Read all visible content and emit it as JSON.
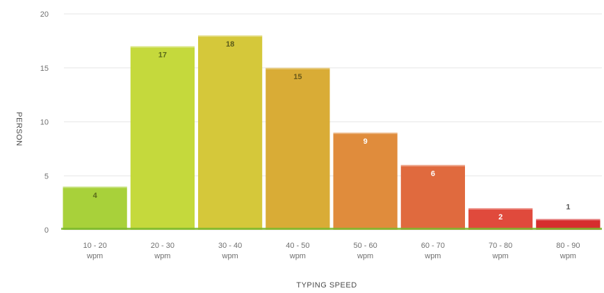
{
  "chart_data": {
    "type": "bar",
    "title": "",
    "xlabel": "TYPING SPEED",
    "ylabel": "PERSON",
    "ylim": [
      0,
      20
    ],
    "yticks": [
      0,
      5,
      10,
      15,
      20
    ],
    "grid": true,
    "legend": "none",
    "categories": [
      [
        "10 - 20",
        "wpm"
      ],
      [
        "20 - 30",
        "wpm"
      ],
      [
        "30 - 40",
        "wpm"
      ],
      [
        "40 - 50",
        "wpm"
      ],
      [
        "50 - 60",
        "wpm"
      ],
      [
        "60 - 70",
        "wpm"
      ],
      [
        "70 - 80",
        "wpm"
      ],
      [
        "80 - 90",
        "wpm"
      ]
    ],
    "values": [
      4,
      17,
      18,
      15,
      9,
      6,
      2,
      1
    ],
    "data_labels": [
      "4",
      "17",
      "18",
      "15",
      "9",
      "6",
      "2",
      "1"
    ],
    "colors": [
      "#a8d13a",
      "#c5d93c",
      "#d5c83a",
      "#d9ac36",
      "#e08c3c",
      "#e06a3e",
      "#e04a3c",
      "#d62e2e"
    ],
    "label_colors": [
      "#5a6a1a",
      "#5a6a1a",
      "#5a5a1a",
      "#6a5a1a",
      "#ffffff",
      "#ffffff",
      "#ffffff",
      "#555555"
    ],
    "baseline_color": "#7cb82f"
  }
}
